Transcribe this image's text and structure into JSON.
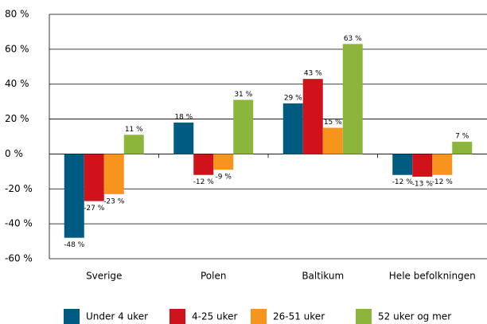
{
  "chart_data": {
    "type": "bar",
    "categories": [
      "Sverige",
      "Polen",
      "Baltikum",
      "Hele befolkningen"
    ],
    "series": [
      {
        "name": "Under 4 uker",
        "color": "#005b82",
        "values": [
          -48,
          18,
          29,
          -12
        ],
        "value_labels": [
          "-48 %",
          "18 %",
          "29 %",
          "-12 %"
        ]
      },
      {
        "name": "4-25 uker",
        "color": "#d0121b",
        "values": [
          -27,
          -12,
          43,
          -13
        ],
        "value_labels": [
          "-27 %",
          "-12 %",
          "43 %",
          "-13 %"
        ]
      },
      {
        "name": "26-51 uker",
        "color": "#f7941d",
        "values": [
          -23,
          -9,
          15,
          -12
        ],
        "value_labels": [
          "-23 %",
          "-9 %",
          "15 %",
          "-12 %"
        ]
      },
      {
        "name": "52 uker og mer",
        "color": "#8bb53b",
        "values": [
          11,
          31,
          63,
          7
        ],
        "value_labels": [
          "11 %",
          "31 %",
          "63 %",
          "7 %"
        ]
      }
    ],
    "ylim": [
      -60,
      80
    ],
    "yticks": [
      {
        "value": -60,
        "label": "-60 %"
      },
      {
        "value": -40,
        "label": "-40 %"
      },
      {
        "value": -20,
        "label": "-20 %"
      },
      {
        "value": 0,
        "label": "0 %"
      },
      {
        "value": 20,
        "label": "20 %"
      },
      {
        "value": 40,
        "label": "40 %"
      },
      {
        "value": 60,
        "label": "60 %"
      },
      {
        "value": 80,
        "label": "80 %"
      }
    ],
    "grid": true
  }
}
